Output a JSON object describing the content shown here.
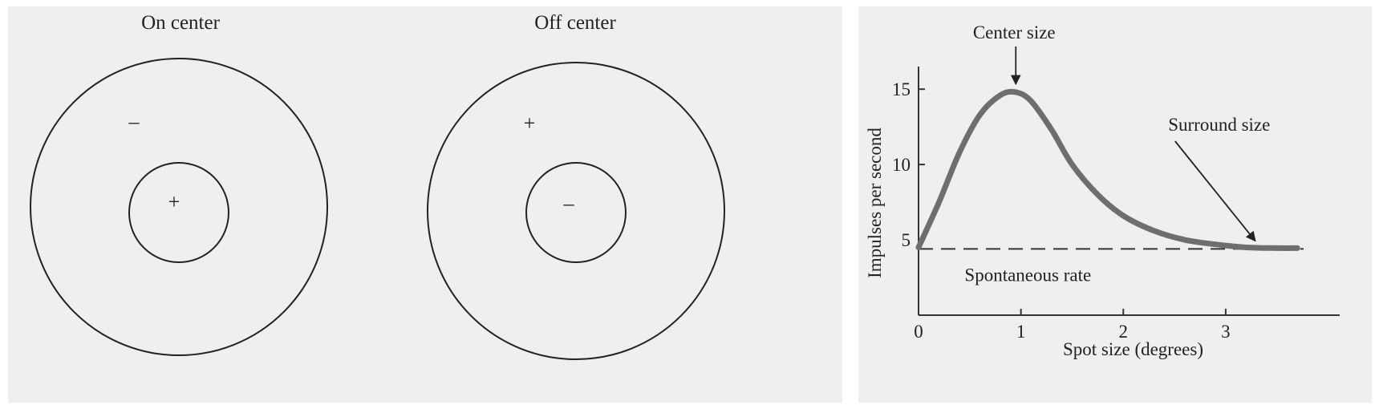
{
  "receptive_fields": [
    {
      "title": "On center",
      "surround_sign": "–",
      "center_sign": "+"
    },
    {
      "title": "Off center",
      "surround_sign": "+",
      "center_sign": "–"
    }
  ],
  "chart_data": {
    "type": "line",
    "xlabel": "Spot size (degrees)",
    "ylabel": "Impulses per second",
    "x_ticks": [
      0,
      1,
      2,
      3
    ],
    "y_ticks": [
      5,
      10,
      15
    ],
    "xlim": [
      0,
      3.8
    ],
    "ylim": [
      0,
      16.5
    ],
    "grid": false,
    "series": [
      {
        "x": [
          0.0,
          0.2,
          0.4,
          0.6,
          0.8,
          0.95,
          1.1,
          1.3,
          1.5,
          1.75,
          2.0,
          2.3,
          2.6,
          2.9,
          3.2,
          3.5,
          3.7
        ],
        "y": [
          4.5,
          7.5,
          10.8,
          13.3,
          14.6,
          14.8,
          14.2,
          12.3,
          10.0,
          8.0,
          6.6,
          5.6,
          5.0,
          4.7,
          4.5,
          4.45,
          4.45
        ]
      }
    ],
    "baseline": {
      "y": 4.4,
      "label": "Spontaneous rate"
    },
    "annotations": [
      {
        "text": "Center size",
        "x": 0.95,
        "y": 14.8
      },
      {
        "text": "Surround size",
        "x": 3.25,
        "y": 4.5
      }
    ],
    "colors": {
      "curve": "#6e6e6e",
      "axis": "#333333"
    }
  }
}
